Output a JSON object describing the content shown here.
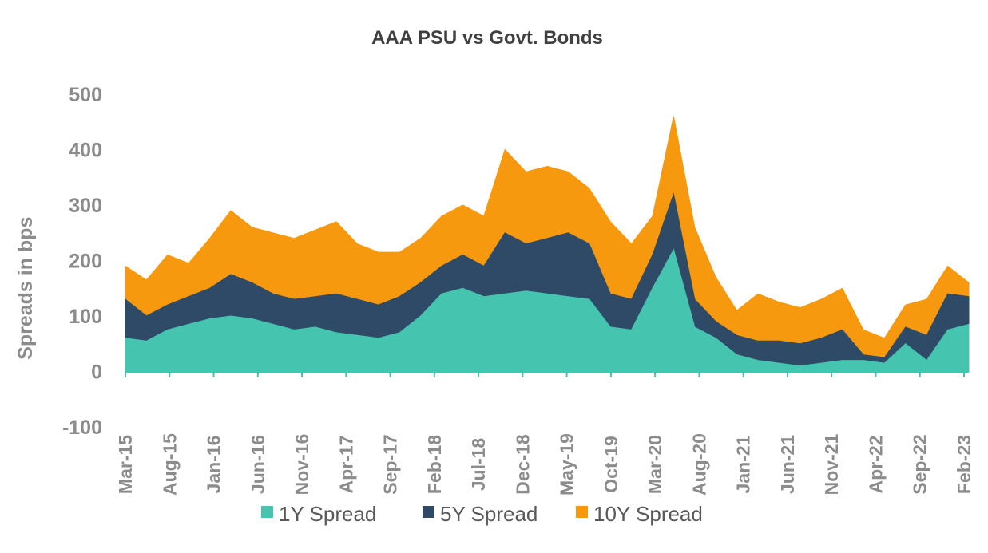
{
  "chart_data": {
    "type": "area",
    "stacking": "overlapping",
    "title": "AAA PSU vs Govt. Bonds",
    "xlabel": "",
    "ylabel": "Spreads in bps",
    "ylim": [
      -100,
      500
    ],
    "yticks": [
      "500",
      "400",
      "300",
      "200",
      "100",
      "0",
      "-100"
    ],
    "grid": false,
    "legend_position": "bottom",
    "x_tick_labels": [
      "Mar-15",
      "Aug-15",
      "Jan-16",
      "Jun-16",
      "Nov-16",
      "Apr-17",
      "Sep-17",
      "Feb-18",
      "Jul-18",
      "Dec-18",
      "May-19",
      "Oct-19",
      "Mar-20",
      "Aug-20",
      "Jan-21",
      "Jun-21",
      "Nov-21",
      "Apr-22",
      "Sep-22",
      "Feb-23"
    ],
    "x": [
      "Mar-15",
      "Jun-15",
      "Aug-15",
      "Oct-15",
      "Jan-16",
      "Mar-16",
      "Jun-16",
      "Aug-16",
      "Nov-16",
      "Jan-17",
      "Apr-17",
      "Jun-17",
      "Sep-17",
      "Nov-17",
      "Feb-18",
      "Apr-18",
      "Jul-18",
      "Sep-18",
      "Dec-18",
      "Feb-19",
      "May-19",
      "Jul-19",
      "Oct-19",
      "Dec-19",
      "Mar-20",
      "Apr-20",
      "Jun-20",
      "Aug-20",
      "Nov-20",
      "Jan-21",
      "Mar-21",
      "Jun-21",
      "Aug-21",
      "Nov-21",
      "Jan-22",
      "Apr-22",
      "Jun-22",
      "Sep-22",
      "Nov-22",
      "Feb-23",
      "Mar-23"
    ],
    "series": [
      {
        "name": "1Y Spread",
        "color": "#45c4b0",
        "values": [
          60,
          55,
          75,
          85,
          95,
          100,
          95,
          85,
          75,
          80,
          70,
          65,
          60,
          70,
          100,
          140,
          150,
          135,
          140,
          145,
          140,
          135,
          130,
          80,
          75,
          150,
          220,
          80,
          60,
          30,
          20,
          15,
          10,
          15,
          20,
          20,
          15,
          50,
          20,
          75,
          85
        ]
      },
      {
        "name": "5Y Spread",
        "color": "#2e4a66",
        "values": [
          130,
          100,
          120,
          135,
          150,
          175,
          160,
          140,
          130,
          135,
          140,
          130,
          120,
          135,
          160,
          190,
          210,
          190,
          250,
          230,
          240,
          250,
          230,
          140,
          130,
          210,
          320,
          130,
          90,
          65,
          55,
          55,
          50,
          60,
          75,
          30,
          25,
          80,
          65,
          140,
          135
        ]
      },
      {
        "name": "10Y Spread",
        "color": "#f7990f",
        "values": [
          190,
          165,
          210,
          195,
          240,
          290,
          260,
          250,
          240,
          255,
          270,
          230,
          215,
          215,
          240,
          280,
          300,
          280,
          400,
          360,
          370,
          360,
          330,
          270,
          230,
          280,
          460,
          260,
          170,
          110,
          140,
          125,
          115,
          130,
          150,
          75,
          60,
          120,
          130,
          190,
          160
        ]
      }
    ]
  }
}
